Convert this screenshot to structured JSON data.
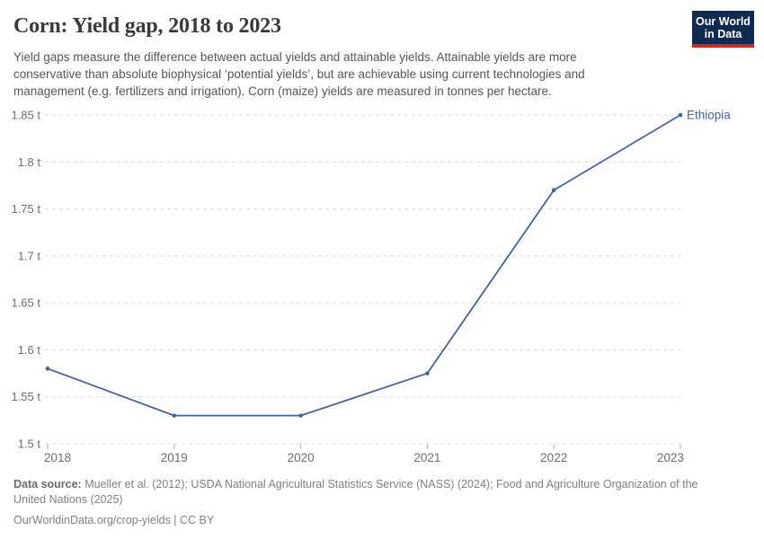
{
  "header": {
    "title": "Corn: Yield gap, 2018 to 2023",
    "subtitle": "Yield gaps measure the difference between actual yields and attainable yields. Attainable yields are more conservative than absolute biophysical ‘potential yields’, but are achievable using current technologies and management (e.g. fertilizers and irrigation). Corn (maize) yields are measured in tonnes per hectare.",
    "logo_line1": "Our World",
    "logo_line2": "in Data"
  },
  "chart_data": {
    "type": "line",
    "title": "Corn: Yield gap, 2018 to 2023",
    "x": [
      "2018",
      "2019",
      "2020",
      "2021",
      "2022",
      "2023"
    ],
    "series": [
      {
        "name": "Ethiopia",
        "color": "#4064A4",
        "values": [
          1.58,
          1.53,
          1.53,
          1.575,
          1.77,
          1.85
        ]
      }
    ],
    "ylabel": "",
    "xlabel": "",
    "unit_suffix": " t",
    "ylim": [
      1.5,
      1.85
    ],
    "ytick_step": 0.05,
    "grid": "horizontal-dashed",
    "legend": "line-end-label",
    "end_label": "Ethiopia"
  },
  "theme": {
    "line_color": "#4064A4",
    "grid_color": "#DCDCDC",
    "tick_color": "#B0B0B0",
    "axis_label_color": "#6E6E6E",
    "logo_bg": "#102A50",
    "logo_accent": "#C92A2A"
  },
  "footer": {
    "source_label": "Data source:",
    "source_text": " Mueller et al. (2012); USDA National Agricultural Statistics Service (NASS) (2024); Food and Agriculture Organization of the United Nations (2025)",
    "license_text": "OurWorldinData.org/crop-yields | CC BY"
  }
}
